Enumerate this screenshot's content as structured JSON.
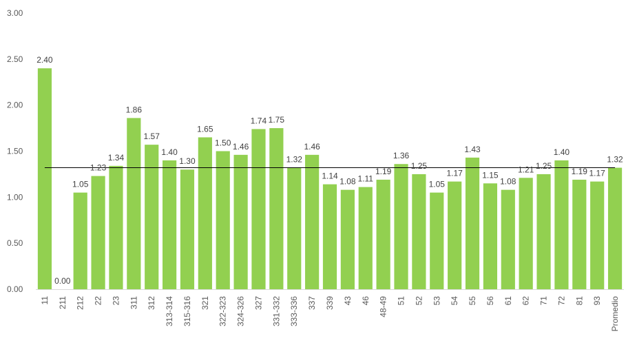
{
  "chart_data": {
    "type": "bar",
    "title": "",
    "xlabel": "",
    "ylabel": "",
    "ylim": [
      0,
      3
    ],
    "yticks": [
      "0.00",
      "0.50",
      "1.00",
      "1.50",
      "2.00",
      "2.50",
      "3.00"
    ],
    "grid": false,
    "legend": "none",
    "bar_color": "#92d050",
    "reference_line": {
      "value": 1.32,
      "color": "#000000"
    },
    "categories": [
      "11",
      "211",
      "212",
      "22",
      "23",
      "311",
      "312",
      "313-314",
      "315-316",
      "321",
      "322-323",
      "324-326",
      "327",
      "331-332",
      "333-336",
      "337",
      "339",
      "43",
      "46",
      "48-49",
      "51",
      "52",
      "53",
      "54",
      "55",
      "56",
      "61",
      "62",
      "71",
      "72",
      "81",
      "93",
      "Promedio"
    ],
    "values": [
      2.4,
      0.0,
      1.05,
      1.23,
      1.34,
      1.86,
      1.57,
      1.4,
      1.3,
      1.65,
      1.5,
      1.46,
      1.74,
      1.75,
      1.32,
      1.46,
      1.14,
      1.08,
      1.11,
      1.19,
      1.36,
      1.25,
      1.05,
      1.17,
      1.43,
      1.15,
      1.08,
      1.21,
      1.25,
      1.4,
      1.19,
      1.17,
      1.32
    ],
    "labels": [
      "2.40",
      "0.00",
      "1.05",
      "1.23",
      "1.34",
      "1.86",
      "1.57",
      "1.40",
      "1.30",
      "1.65",
      "1.50",
      "1.46",
      "1.74",
      "1.75",
      "1.32",
      "1.46",
      "1.14",
      "1.08",
      "1.11",
      "1.19",
      "1.36",
      "1.25",
      "1.05",
      "1.17",
      "1.43",
      "1.15",
      "1.08",
      "1.21",
      "1.25",
      "1.40",
      "1.19",
      "1.17",
      "1.32"
    ]
  }
}
